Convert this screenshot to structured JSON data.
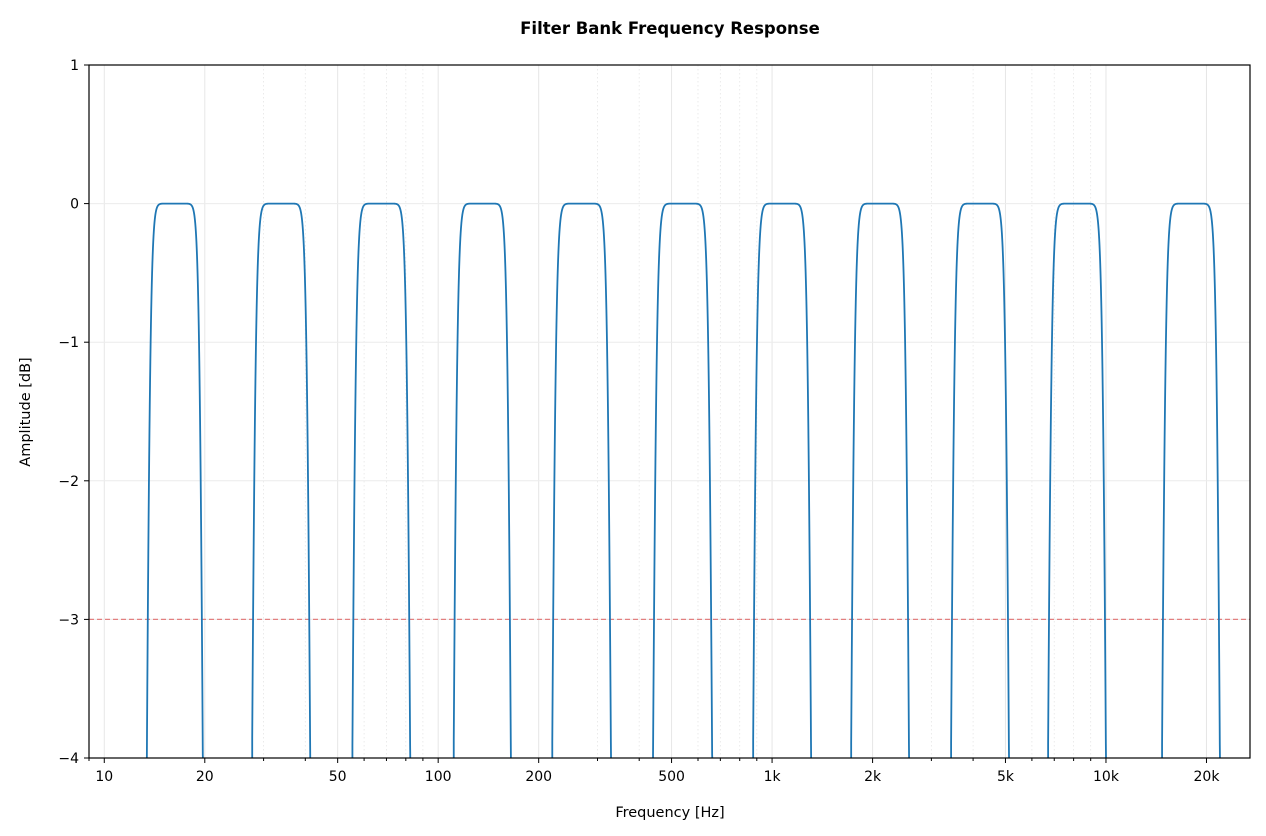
{
  "chart_data": {
    "type": "line",
    "title": "Filter Bank Frequency Response",
    "xlabel": "Frequency [Hz]",
    "ylabel": "Amplitude [dB]",
    "xscale": "log",
    "xlim": [
      9,
      27000
    ],
    "ylim": [
      -4,
      1
    ],
    "xticks": [
      10,
      20,
      50,
      100,
      200,
      500,
      1000,
      2000,
      5000,
      10000,
      20000
    ],
    "xtick_labels": [
      "10",
      "20",
      "50",
      "100",
      "200",
      "500",
      "1k",
      "2k",
      "5k",
      "10k",
      "20k"
    ],
    "yticks": [
      1,
      0,
      -1,
      -2,
      -3,
      -4
    ],
    "ytick_labels": [
      "1",
      "0",
      "−1",
      "−2",
      "−3",
      "−4"
    ],
    "grid": true,
    "line_color": "#1f77b4",
    "reference_line": {
      "y": -3,
      "color": "#e06666",
      "style": "dashed"
    },
    "bands_minus3db_edges_hz": [
      [
        13.5,
        19.6
      ],
      [
        27.9,
        41.1
      ],
      [
        55.7,
        81.9
      ],
      [
        112,
        164
      ],
      [
        221,
        327
      ],
      [
        443,
        657
      ],
      [
        883,
        1300
      ],
      [
        1736,
        2554
      ],
      [
        3458,
        5088
      ],
      [
        6751,
        9931
      ],
      [
        14815,
        21790
      ]
    ]
  }
}
